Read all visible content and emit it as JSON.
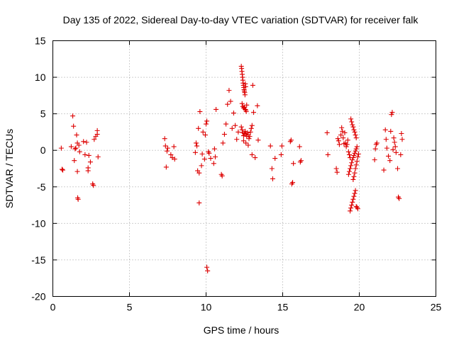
{
  "chart_data": {
    "type": "scatter",
    "title": "Day 135 of 2022, Sidereal Day-to-day VTEC variation (SDTVAR) for receiver falk",
    "xlabel": "GPS time / hours",
    "ylabel": "SDTVAR / TECUs",
    "xlim": [
      0,
      25
    ],
    "ylim": [
      -20,
      15
    ],
    "xticks": [
      0,
      5,
      10,
      15,
      20,
      25
    ],
    "yticks": [
      -20,
      -15,
      -10,
      -5,
      0,
      5,
      10,
      15
    ],
    "grid": true,
    "marker": "plus",
    "color": "#dd0000",
    "series": [
      {
        "name": "SDTVAR",
        "x": [
          0.55,
          0.6,
          0.65,
          1.2,
          1.3,
          1.35,
          1.4,
          1.45,
          1.5,
          1.55,
          1.6,
          1.65,
          1.7,
          1.75,
          1.6,
          1.62,
          2.0,
          2.1,
          2.2,
          2.3,
          2.3,
          2.35,
          2.45,
          2.6,
          2.65,
          2.7,
          2.8,
          2.9,
          2.95,
          2.9,
          7.3,
          7.35,
          7.4,
          7.45,
          7.5,
          7.7,
          7.8,
          7.9,
          7.95,
          9.3,
          9.35,
          9.4,
          9.45,
          9.5,
          9.55,
          9.55,
          9.6,
          9.7,
          9.75,
          9.8,
          9.9,
          9.95,
          10.0,
          10.05,
          10.05,
          10.1,
          10.15,
          10.2,
          10.3,
          10.5,
          10.55,
          10.6,
          10.65,
          11.0,
          11.05,
          11.1,
          11.2,
          11.3,
          11.4,
          11.5,
          11.6,
          11.7,
          11.8,
          11.9,
          12.0,
          12.1,
          12.3,
          12.32,
          12.34,
          12.36,
          12.38,
          12.4,
          12.42,
          12.44,
          12.46,
          12.48,
          12.5,
          12.52,
          12.54,
          12.56,
          12.58,
          12.35,
          12.4,
          12.45,
          12.5,
          12.55,
          12.6,
          12.62,
          12.65,
          12.3,
          12.35,
          12.4,
          12.45,
          12.5,
          12.55,
          12.6,
          12.65,
          12.7,
          12.75,
          12.8,
          12.85,
          12.9,
          12.95,
          13.0,
          12.45,
          12.6,
          12.75,
          13.0,
          13.05,
          13.1,
          13.2,
          13.35,
          13.4,
          14.2,
          14.3,
          14.35,
          14.5,
          14.9,
          14.95,
          15.5,
          15.55,
          15.6,
          15.65,
          15.7,
          16.1,
          16.15,
          16.2,
          17.9,
          17.95,
          18.5,
          18.55,
          18.6,
          18.65,
          18.7,
          18.8,
          18.85,
          18.9,
          18.95,
          19.0,
          19.05,
          19.1,
          19.15,
          19.2,
          19.25,
          19.3,
          19.35,
          19.4,
          19.45,
          19.5,
          19.55,
          19.6,
          19.65,
          19.7,
          19.75,
          19.8,
          19.3,
          19.35,
          19.4,
          19.45,
          19.5,
          19.55,
          19.6,
          19.65,
          19.7,
          19.75,
          19.8,
          19.85,
          19.4,
          19.45,
          19.5,
          19.55,
          19.6,
          19.65,
          19.7,
          19.75,
          19.8,
          19.85,
          19.9,
          19.6,
          19.65,
          19.7,
          19.75,
          19.8,
          19.85,
          19.9,
          19.95,
          21.0,
          21.05,
          21.1,
          21.15,
          21.6,
          21.7,
          21.75,
          21.8,
          21.9,
          22.0,
          22.05,
          22.1,
          22.15,
          22.2,
          22.25,
          22.3,
          22.35,
          22.4,
          22.5,
          22.55,
          22.6,
          22.7,
          22.75,
          22.8
        ],
        "y": [
          0.3,
          -2.6,
          -2.7,
          0.5,
          4.7,
          3.3,
          -1.4,
          0.2,
          0.3,
          2.1,
          -2.9,
          -6.7,
          0.7,
          -0.2,
          1.0,
          -6.5,
          1.2,
          -0.6,
          1.1,
          -2.4,
          -2.8,
          -0.7,
          -1.6,
          -4.6,
          -4.8,
          1.5,
          1.9,
          2.7,
          -0.9,
          2.2,
          1.6,
          0.6,
          -2.3,
          -0.1,
          0.3,
          -0.6,
          -1.0,
          0.5,
          -1.2,
          -0.3,
          1.0,
          0.6,
          -2.8,
          3.0,
          -7.2,
          -3.1,
          5.3,
          -2.1,
          -0.5,
          2.5,
          -1.2,
          2.1,
          3.6,
          4.0,
          -16.0,
          -16.5,
          -0.2,
          -0.4,
          -1.1,
          -1.8,
          0.2,
          -0.9,
          5.6,
          -3.3,
          -3.5,
          1.0,
          2.2,
          3.6,
          6.3,
          8.2,
          6.7,
          3.0,
          5.1,
          3.4,
          1.5,
          2.5,
          11.5,
          11.2,
          10.8,
          10.4,
          10.0,
          9.6,
          9.2,
          8.9,
          8.6,
          8.3,
          8.1,
          7.9,
          7.6,
          9.1,
          8.7,
          6.4,
          6.0,
          5.8,
          5.9,
          5.6,
          5.5,
          5.3,
          6.2,
          3.2,
          2.8,
          2.4,
          2.0,
          2.3,
          2.6,
          2.2,
          1.9,
          2.4,
          2.1,
          1.6,
          1.9,
          2.5,
          3.0,
          3.4,
          1.3,
          1.0,
          0.7,
          -0.6,
          8.9,
          5.2,
          -1.0,
          6.1,
          1.4,
          0.6,
          -2.5,
          -3.9,
          -1.1,
          -0.6,
          0.6,
          1.2,
          1.4,
          -4.6,
          -4.4,
          -1.8,
          0.5,
          -1.6,
          -1.4,
          2.4,
          -0.6,
          -2.5,
          -3.0,
          1.6,
          1.3,
          0.8,
          2.1,
          3.1,
          2.6,
          1.7,
          0.9,
          2.4,
          1.0,
          0.5,
          0.8,
          1.4,
          -0.2,
          -0.6,
          -1.0,
          4.3,
          3.9,
          3.5,
          3.2,
          2.8,
          2.5,
          2.1,
          1.7,
          -3.3,
          -2.9,
          -2.5,
          -2.1,
          -1.7,
          -1.3,
          -1.0,
          -0.7,
          -0.4,
          -0.1,
          0.2,
          0.5,
          -8.3,
          -7.9,
          -7.5,
          -7.1,
          -6.7,
          -6.3,
          -5.9,
          -5.5,
          -7.7,
          -7.8,
          -8.0,
          -4.0,
          -3.6,
          -3.1,
          -2.5,
          -2.0,
          -1.5,
          -0.9,
          -0.5,
          -1.3,
          0.2,
          0.8,
          1.0,
          -2.7,
          2.8,
          1.5,
          0.3,
          -0.8,
          -1.4,
          2.6,
          4.9,
          5.2,
          0.1,
          1.7,
          1.1,
          0.5,
          -0.3,
          -2.5,
          -6.4,
          -6.6,
          -0.6,
          2.3,
          1.5
        ]
      }
    ]
  }
}
